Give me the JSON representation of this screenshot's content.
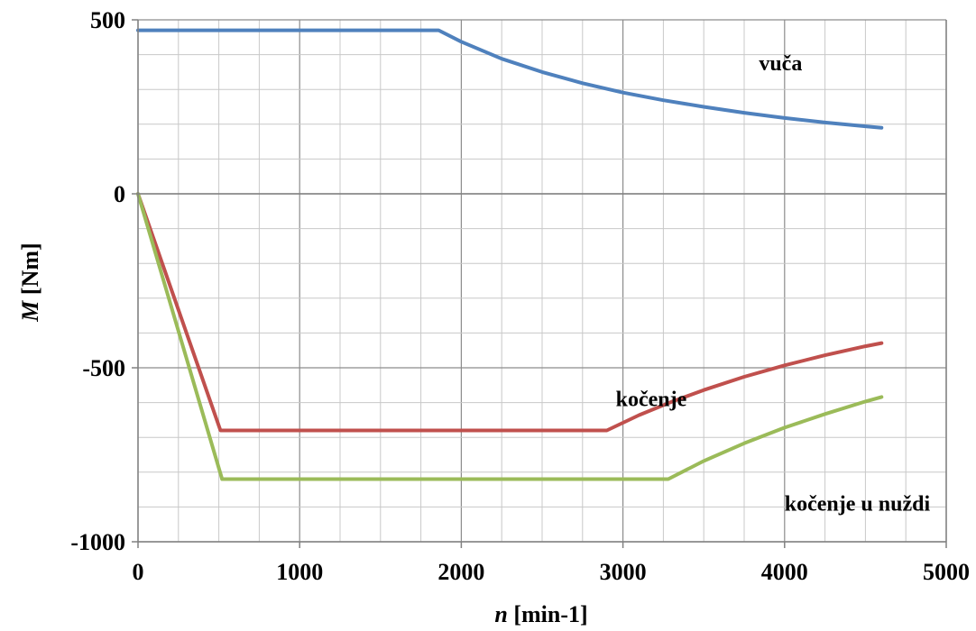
{
  "chart_data": {
    "type": "line",
    "title": "",
    "xlabel_var": "n",
    "xlabel_unit": " [min-1]",
    "ylabel_var": "M",
    "ylabel_unit": " [Nm]",
    "xlim": [
      0,
      5000
    ],
    "ylim": [
      -1000,
      500
    ],
    "x_ticks": [
      0,
      1000,
      2000,
      3000,
      4000,
      5000
    ],
    "y_ticks": [
      500,
      0,
      -500,
      -1000
    ],
    "x_tick_labels": [
      "0",
      "1000",
      "2000",
      "3000",
      "4000",
      "5000"
    ],
    "y_tick_labels": [
      "500",
      "0",
      "-500",
      "-1000"
    ],
    "x_minor_step": 250,
    "y_minor_step": 100,
    "grid": true,
    "series": [
      {
        "label": "vuča",
        "color": "#4f81bd",
        "points": [
          [
            0,
            470
          ],
          [
            500,
            470
          ],
          [
            1000,
            470
          ],
          [
            1500,
            470
          ],
          [
            1860,
            470
          ],
          [
            2000,
            437
          ],
          [
            2250,
            388
          ],
          [
            2500,
            350
          ],
          [
            2750,
            318
          ],
          [
            3000,
            291
          ],
          [
            3250,
            269
          ],
          [
            3500,
            250
          ],
          [
            3750,
            233
          ],
          [
            4000,
            218
          ],
          [
            4250,
            205
          ],
          [
            4500,
            194
          ],
          [
            4600,
            190
          ]
        ]
      },
      {
        "label": "kočenje",
        "color": "#c0504d",
        "points": [
          [
            0,
            0
          ],
          [
            510,
            -680
          ],
          [
            1000,
            -680
          ],
          [
            1500,
            -680
          ],
          [
            2000,
            -680
          ],
          [
            2500,
            -680
          ],
          [
            2900,
            -680
          ],
          [
            3100,
            -636
          ],
          [
            3300,
            -598
          ],
          [
            3500,
            -564
          ],
          [
            3750,
            -526
          ],
          [
            4000,
            -493
          ],
          [
            4250,
            -464
          ],
          [
            4500,
            -438
          ],
          [
            4600,
            -429
          ]
        ]
      },
      {
        "label": "kočenje u nuždi",
        "color": "#9bbb59",
        "points": [
          [
            0,
            0
          ],
          [
            520,
            -820
          ],
          [
            1000,
            -820
          ],
          [
            1500,
            -820
          ],
          [
            2000,
            -820
          ],
          [
            2500,
            -820
          ],
          [
            3000,
            -820
          ],
          [
            3280,
            -820
          ],
          [
            3500,
            -768
          ],
          [
            3750,
            -717
          ],
          [
            4000,
            -672
          ],
          [
            4250,
            -633
          ],
          [
            4500,
            -597
          ],
          [
            4600,
            -584
          ]
        ]
      }
    ]
  }
}
